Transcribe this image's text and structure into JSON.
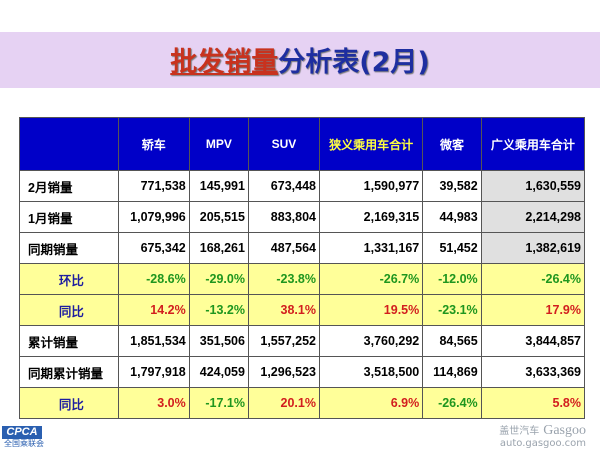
{
  "title": {
    "highlight": "批发销量",
    "rest": "分析表(2月)"
  },
  "columns": [
    "",
    "轿车",
    "MPV",
    "SUV",
    "狭义乘用车合计",
    "微客",
    "广义乘用车合计"
  ],
  "rows": [
    {
      "label": "2月销量",
      "values": [
        "771,538",
        "145,991",
        "673,448",
        "1,590,977",
        "39,582",
        "1,630,559"
      ]
    },
    {
      "label": "1月销量",
      "values": [
        "1,079,996",
        "205,515",
        "883,804",
        "2,169,315",
        "44,983",
        "2,214,298"
      ]
    },
    {
      "label": "同期销量",
      "values": [
        "675,342",
        "168,261",
        "487,564",
        "1,331,167",
        "51,452",
        "1,382,619"
      ]
    },
    {
      "label": "环比",
      "values": [
        "-28.6%",
        "-29.0%",
        "-23.8%",
        "-26.7%",
        "-12.0%",
        "-26.4%"
      ]
    },
    {
      "label": "同比",
      "values": [
        "14.2%",
        "-13.2%",
        "38.1%",
        "19.5%",
        "-23.1%",
        "17.9%"
      ]
    },
    {
      "label": "累计销量",
      "values": [
        "1,851,534",
        "351,506",
        "1,557,252",
        "3,760,292",
        "84,565",
        "3,844,857"
      ]
    },
    {
      "label": "同期累计销量",
      "values": [
        "1,797,918",
        "424,059",
        "1,296,523",
        "3,518,500",
        "114,869",
        "3,633,369"
      ]
    },
    {
      "label": "同比",
      "values": [
        "3.0%",
        "-17.1%",
        "20.1%",
        "6.9%",
        "-26.4%",
        "5.8%"
      ]
    }
  ],
  "logos": {
    "cpca": "CPCA",
    "cpca_sub": "全国乘联会",
    "gasgoo": "Gasgoo",
    "gasgoo_cn": "盖世汽车",
    "gasgoo_url": "auto.gasgoo.com"
  },
  "colors": {
    "header": "#0000c8",
    "highlight_row": "#ffff99",
    "positive": "#d21e1e",
    "negative": "#1e961e"
  }
}
